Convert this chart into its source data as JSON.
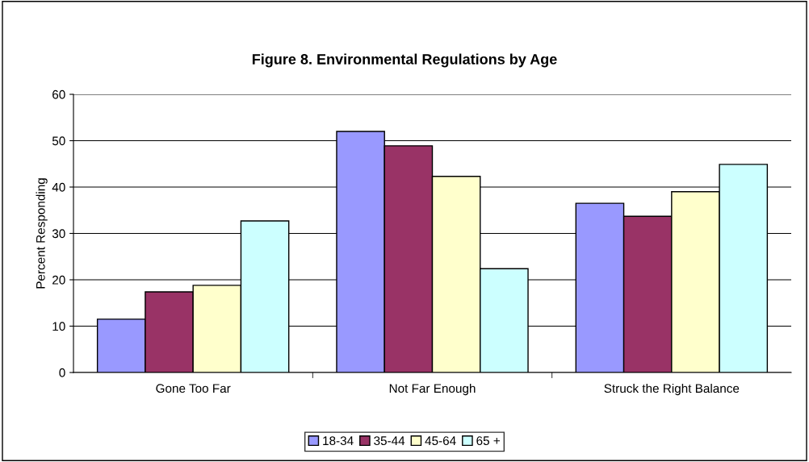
{
  "chart_data": {
    "type": "bar",
    "title": "Figure 8. Environmental Regulations by Age",
    "ylabel": "Percent Responding",
    "categories": [
      "Gone Too Far",
      "Not Far Enough",
      "Struck the Right Balance"
    ],
    "series": [
      {
        "name": "18-34",
        "color": "#9999ff",
        "values": [
          11.5,
          52.0,
          36.5
        ]
      },
      {
        "name": "35-44",
        "color": "#993366",
        "values": [
          17.4,
          48.9,
          33.7
        ]
      },
      {
        "name": "45-64",
        "color": "#ffffcc",
        "values": [
          18.8,
          42.3,
          39.0
        ]
      },
      {
        "name": "65 +",
        "color": "#ccffff",
        "values": [
          32.7,
          22.4,
          44.9
        ]
      }
    ],
    "ylim": [
      0,
      60
    ],
    "yticks": [
      0,
      10,
      20,
      30,
      40,
      50,
      60
    ],
    "grid": "y",
    "legend": "bottom"
  }
}
